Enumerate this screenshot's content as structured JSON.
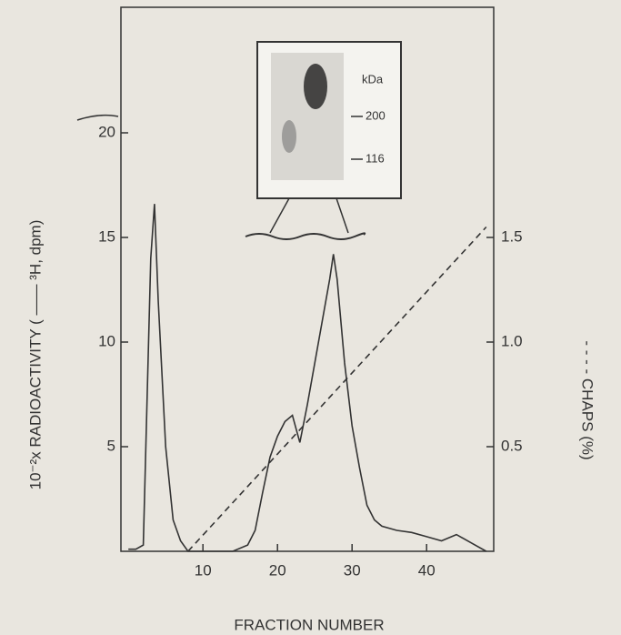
{
  "chart_data": {
    "type": "line",
    "y_label": "10⁻²x RADIOACTIVITY ( —— ³H, dpm)",
    "y2_label": "- - - - CHAPS (%)",
    "x_label": "FRACTION NUMBER",
    "xlim": [
      -1,
      49
    ],
    "ylim": [
      0,
      26
    ],
    "y2lim": [
      0,
      2.6
    ],
    "xticks": [
      10,
      20,
      30,
      40
    ],
    "yticks": [
      5,
      10,
      15,
      20
    ],
    "y2ticks": [
      0.5,
      {
        "value": 1,
        "label": "1.0"
      },
      1.5
    ],
    "series": [
      {
        "color": "#333333",
        "dash": false,
        "x": [
          0,
          1,
          2,
          3,
          3.5,
          4,
          5,
          6,
          7,
          8,
          10,
          12,
          14,
          16,
          17,
          18,
          19,
          20,
          21,
          22,
          23,
          24,
          25,
          26,
          27,
          27.5,
          28,
          29,
          30,
          31,
          32,
          33,
          34,
          36,
          38,
          40,
          42,
          44,
          46,
          48
        ],
        "values": [
          0.1,
          0.1,
          0.3,
          14,
          16.6,
          12,
          5,
          1.5,
          0.5,
          0,
          0,
          0,
          0,
          0.3,
          1,
          2.8,
          4.5,
          5.5,
          6.2,
          6.5,
          5.2,
          7,
          9,
          11,
          13,
          14.2,
          13,
          9,
          6,
          4,
          2.2,
          1.5,
          1.2,
          1,
          0.9,
          0.7,
          0.5,
          0.8,
          0.4,
          0
        ]
      },
      {
        "color": "#333333",
        "dash": true,
        "axis": "y2",
        "x": [
          8,
          48
        ],
        "values": [
          0,
          1.55
        ]
      }
    ],
    "inset": {
      "unit_label": "kDa",
      "markers": [
        "200",
        "116"
      ]
    }
  }
}
